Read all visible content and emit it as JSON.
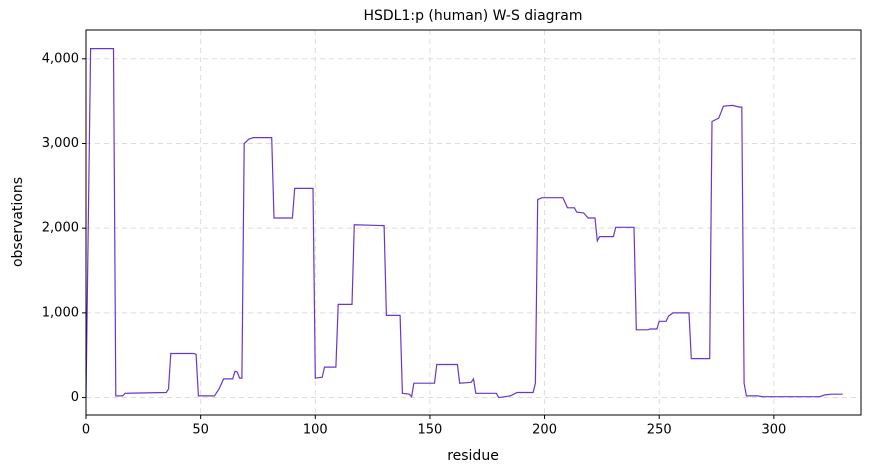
{
  "chart_data": {
    "type": "line",
    "title": "HSDL1:p (human) W-S diagram",
    "xlabel": "residue",
    "ylabel": "observations",
    "grid": true,
    "xlim": [
      0,
      338
    ],
    "xticks": [
      0,
      50,
      100,
      150,
      200,
      250,
      300
    ],
    "ylim": [
      -206,
      4340
    ],
    "yticks": [
      0,
      {
        "value": 1000,
        "label": "1,000"
      },
      {
        "value": 2000,
        "label": "2,000"
      },
      {
        "value": 3000,
        "label": "3,000"
      },
      {
        "value": 4000,
        "label": "4,000"
      }
    ],
    "series": [
      {
        "name": "observations",
        "color": "#6a35d0",
        "x": [
          0,
          2,
          12,
          13,
          16,
          17,
          35,
          36,
          37,
          47,
          48,
          49,
          56,
          58,
          60,
          64,
          65,
          66,
          67,
          68,
          69,
          71,
          73,
          81,
          82,
          90,
          91,
          99,
          100,
          103,
          104,
          109,
          110,
          116,
          117,
          130,
          131,
          137,
          138,
          141,
          142,
          143,
          152,
          153,
          162,
          163,
          168,
          169,
          170,
          179,
          180,
          185,
          188,
          195,
          196,
          197,
          199,
          208,
          210,
          213,
          214,
          217,
          219,
          222,
          223,
          224,
          230,
          231,
          239,
          240,
          245,
          246,
          249,
          250,
          253,
          254,
          256,
          263,
          264,
          272,
          273,
          276,
          278,
          282,
          285,
          286,
          287,
          288,
          293,
          295,
          320,
          322,
          325,
          330
        ],
        "values": [
          0,
          4120,
          4120,
          20,
          20,
          50,
          60,
          100,
          520,
          520,
          510,
          20,
          20,
          100,
          220,
          220,
          310,
          300,
          230,
          230,
          3000,
          3050,
          3070,
          3070,
          2120,
          2120,
          2470,
          2470,
          230,
          240,
          360,
          360,
          1100,
          1100,
          2040,
          2030,
          970,
          970,
          50,
          40,
          10,
          170,
          170,
          390,
          390,
          170,
          180,
          220,
          50,
          50,
          0,
          20,
          60,
          60,
          170,
          2340,
          2360,
          2360,
          2240,
          2240,
          2190,
          2180,
          2120,
          2120,
          1850,
          1900,
          1900,
          2010,
          2010,
          800,
          800,
          810,
          810,
          900,
          900,
          960,
          1000,
          1000,
          460,
          460,
          3260,
          3300,
          3440,
          3450,
          3430,
          3430,
          170,
          20,
          20,
          10,
          10,
          30,
          40,
          40
        ]
      }
    ]
  }
}
